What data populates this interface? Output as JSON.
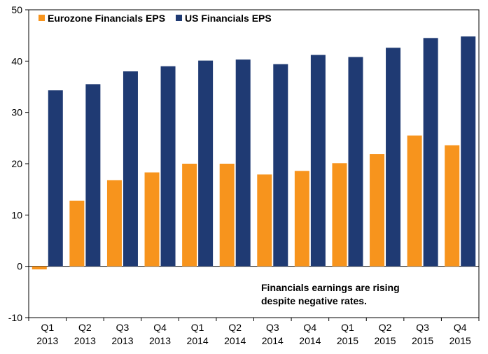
{
  "chart_data": {
    "type": "bar",
    "categories": [
      [
        "Q1",
        "2013"
      ],
      [
        "Q2",
        "2013"
      ],
      [
        "Q3",
        "2013"
      ],
      [
        "Q4",
        "2013"
      ],
      [
        "Q1",
        "2014"
      ],
      [
        "Q2",
        "2014"
      ],
      [
        "Q3",
        "2014"
      ],
      [
        "Q4",
        "2014"
      ],
      [
        "Q1",
        "2015"
      ],
      [
        "Q2",
        "2015"
      ],
      [
        "Q3",
        "2015"
      ],
      [
        "Q4",
        "2015"
      ]
    ],
    "series": [
      {
        "name": "Eurozone Financials EPS",
        "color": "#f7941d",
        "values": [
          -0.6,
          12.8,
          16.8,
          18.3,
          20.0,
          20.0,
          17.9,
          18.6,
          20.1,
          21.9,
          25.5,
          23.6
        ]
      },
      {
        "name": "US Financials EPS",
        "color": "#1f3a73",
        "values": [
          34.3,
          35.5,
          38.0,
          39.0,
          40.1,
          40.3,
          39.4,
          41.2,
          40.8,
          42.6,
          44.5,
          44.8
        ]
      }
    ],
    "ylim": [
      -10,
      50
    ],
    "yticks": [
      -10,
      0,
      10,
      20,
      30,
      40,
      50
    ],
    "grid": false,
    "legend_position": "top-left",
    "annotation": [
      "Financials earnings are rising",
      "despite negative rates."
    ]
  }
}
